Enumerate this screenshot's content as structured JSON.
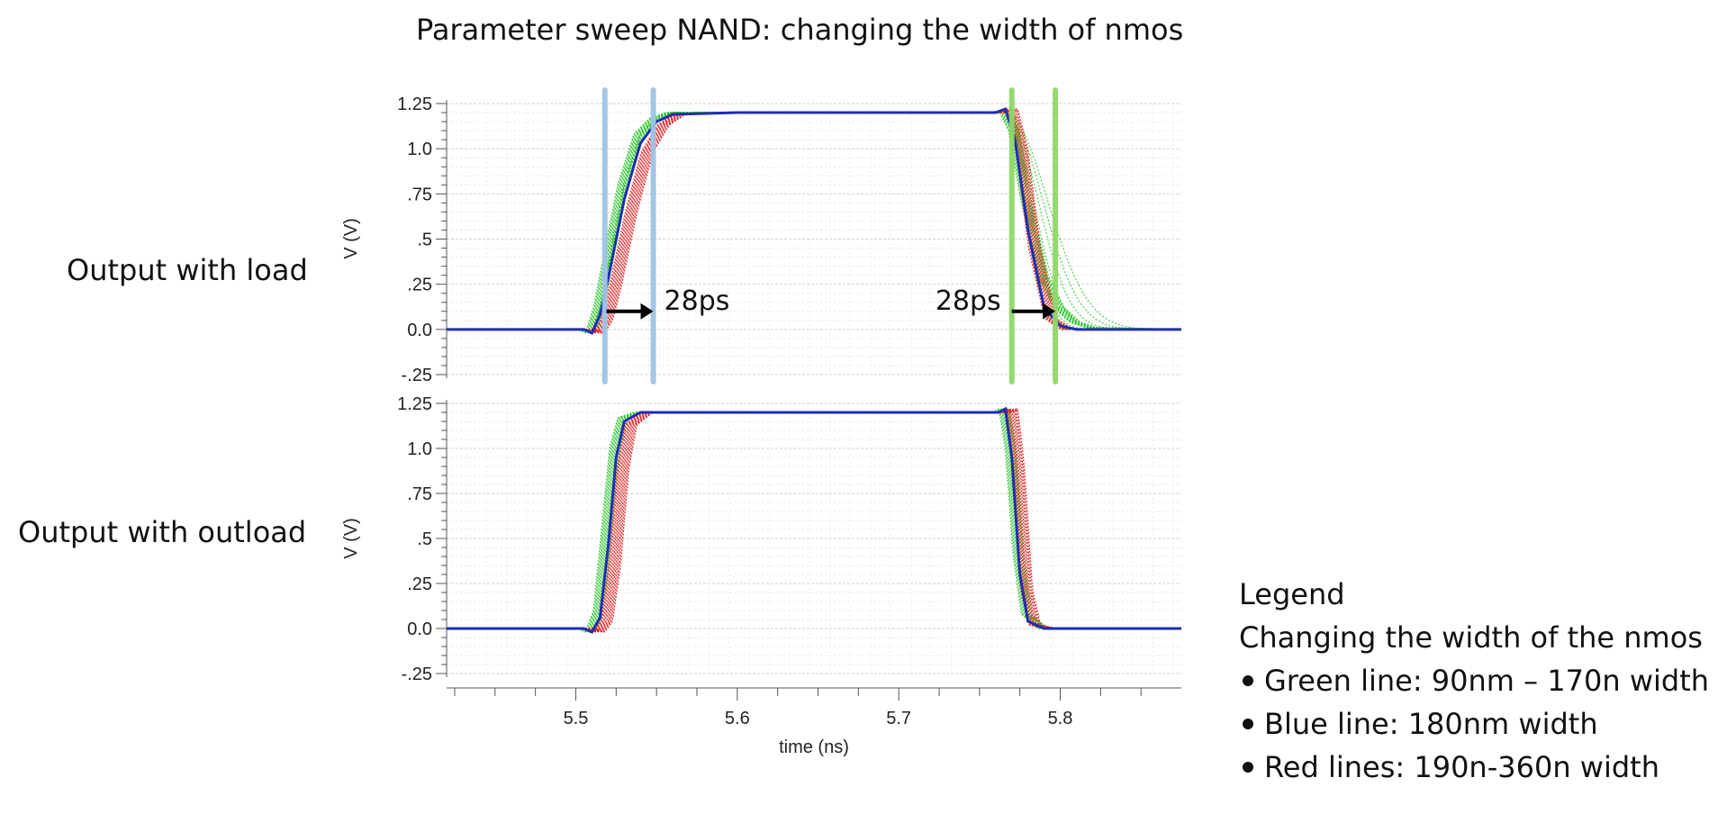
{
  "title": "Parameter sweep NAND: changing the width of nmos",
  "row_labels": {
    "load": "Output with load",
    "outload": "Output with outload"
  },
  "legend": {
    "heading": "Legend",
    "subheading": "Changing the width of the nmos",
    "items": [
      {
        "label": "Green line: 90nm – 170n width",
        "color": "#22c422"
      },
      {
        "label": "Blue line: 180nm width",
        "color": "#1f2db3"
      },
      {
        "label": "Red lines: 190n-360n width",
        "color": "#e02020"
      }
    ]
  },
  "chart_data": [
    {
      "type": "line",
      "panel": "top",
      "xlabel": "time (ns)",
      "ylabel": "V (V)",
      "xlim": [
        5.42,
        5.875
      ],
      "ylim": [
        -0.25,
        1.25
      ],
      "yticks": [
        "1.25",
        "1.0",
        ".75",
        ".5",
        ".25",
        "0.0",
        "-.25"
      ],
      "grid": true,
      "rise_delay": {
        "blue": 0.516,
        "green_shift": -0.003,
        "red_shift": 0.004,
        "tau_rise": 0.007
      },
      "fall_delay": {
        "blue": 5.784,
        "green_shift": -0.004,
        "green_fast_tau": 0.006,
        "green_slow_tau": 0.016,
        "red_shift": 0.003,
        "tau_fall": 0.006
      },
      "series": [
        {
          "name": "Green line",
          "color": "#22c422",
          "x": [
            5.42,
            5.505,
            5.51,
            5.515,
            5.52,
            5.53,
            5.54,
            5.55,
            5.56,
            5.6,
            5.76,
            5.766,
            5.772,
            5.78,
            5.79,
            5.8,
            5.81,
            5.82,
            5.875
          ],
          "values": [
            0.0,
            0.0,
            -0.02,
            0.12,
            0.35,
            0.8,
            1.08,
            1.17,
            1.2,
            1.2,
            1.2,
            1.21,
            1.1,
            0.7,
            0.3,
            0.12,
            0.04,
            0.01,
            0.0
          ]
        },
        {
          "name": "Blue line",
          "color": "#1f2db3",
          "x": [
            5.42,
            5.505,
            5.51,
            5.515,
            5.52,
            5.53,
            5.54,
            5.55,
            5.56,
            5.6,
            5.76,
            5.766,
            5.772,
            5.78,
            5.79,
            5.8,
            5.81,
            5.875
          ],
          "values": [
            0.0,
            0.0,
            -0.02,
            0.08,
            0.28,
            0.72,
            1.03,
            1.15,
            1.19,
            1.2,
            1.2,
            1.22,
            1.05,
            0.55,
            0.12,
            0.02,
            0.0,
            0.0
          ]
        },
        {
          "name": "Red lines",
          "color": "#e02020",
          "x": [
            5.42,
            5.505,
            5.51,
            5.515,
            5.52,
            5.53,
            5.54,
            5.55,
            5.56,
            5.6,
            5.76,
            5.766,
            5.772,
            5.78,
            5.79,
            5.8,
            5.875
          ],
          "values": [
            0.0,
            0.0,
            -0.02,
            0.05,
            0.22,
            0.64,
            0.98,
            1.13,
            1.19,
            1.2,
            1.2,
            1.22,
            1.0,
            0.45,
            0.06,
            0.0,
            0.0
          ]
        }
      ],
      "annotations": [
        {
          "text": "28ps",
          "side": "right",
          "x_from": 5.519,
          "x_to": 5.548,
          "y": 0.1,
          "lines_color": "#9fc3e6",
          "lines_x": [
            5.518,
            5.548
          ]
        },
        {
          "text": "28ps",
          "side": "left",
          "x_from": 5.77,
          "x_to": 5.797,
          "y": 0.1,
          "lines_color": "#8fd86a",
          "lines_x": [
            5.77,
            5.797
          ]
        }
      ]
    },
    {
      "type": "line",
      "panel": "bottom",
      "xlabel": "time (ns)",
      "ylabel": "V (V)",
      "xlim": [
        5.42,
        5.875
      ],
      "ylim": [
        -0.25,
        1.25
      ],
      "yticks": [
        "1.25",
        "1.0",
        ".75",
        ".5",
        ".25",
        "0.0",
        "-.25"
      ],
      "xticks": [
        "5.5",
        "5.6",
        "5.7",
        "5.8"
      ],
      "xtick_values": [
        5.5,
        5.6,
        5.7,
        5.8
      ],
      "grid": true,
      "rise_delay": {
        "blue": 0.522,
        "green_shift": -0.002,
        "red_shift": 0.004,
        "tau_rise": 0.0035
      },
      "fall_delay": {
        "blue": 5.77,
        "green_shift": -0.001,
        "green_fast_tau": 0.003,
        "green_slow_tau": 0.006,
        "red_shift": 0.003,
        "tau_fall": 0.003
      },
      "series": [
        {
          "name": "Green line",
          "color": "#22c422",
          "x": [
            5.42,
            5.505,
            5.51,
            5.515,
            5.52,
            5.525,
            5.53,
            5.54,
            5.6,
            5.762,
            5.766,
            5.77,
            5.775,
            5.78,
            5.79,
            5.875
          ],
          "values": [
            0.0,
            0.0,
            -0.02,
            0.1,
            0.55,
            1.0,
            1.17,
            1.2,
            1.2,
            1.2,
            1.22,
            1.0,
            0.4,
            0.08,
            0.0,
            0.0
          ]
        },
        {
          "name": "Blue line",
          "color": "#1f2db3",
          "x": [
            5.42,
            5.505,
            5.51,
            5.515,
            5.52,
            5.525,
            5.53,
            5.54,
            5.6,
            5.762,
            5.766,
            5.77,
            5.775,
            5.78,
            5.79,
            5.875
          ],
          "values": [
            0.0,
            0.0,
            -0.02,
            0.06,
            0.45,
            0.95,
            1.15,
            1.2,
            1.2,
            1.2,
            1.22,
            0.95,
            0.3,
            0.04,
            0.0,
            0.0
          ]
        },
        {
          "name": "Red lines",
          "color": "#e02020",
          "x": [
            5.42,
            5.505,
            5.51,
            5.515,
            5.52,
            5.525,
            5.53,
            5.54,
            5.6,
            5.762,
            5.766,
            5.77,
            5.775,
            5.78,
            5.79,
            5.875
          ],
          "values": [
            0.0,
            0.0,
            -0.02,
            0.04,
            0.35,
            0.88,
            1.13,
            1.2,
            1.2,
            1.2,
            1.22,
            0.9,
            0.22,
            0.02,
            0.0,
            0.0
          ]
        }
      ]
    }
  ]
}
